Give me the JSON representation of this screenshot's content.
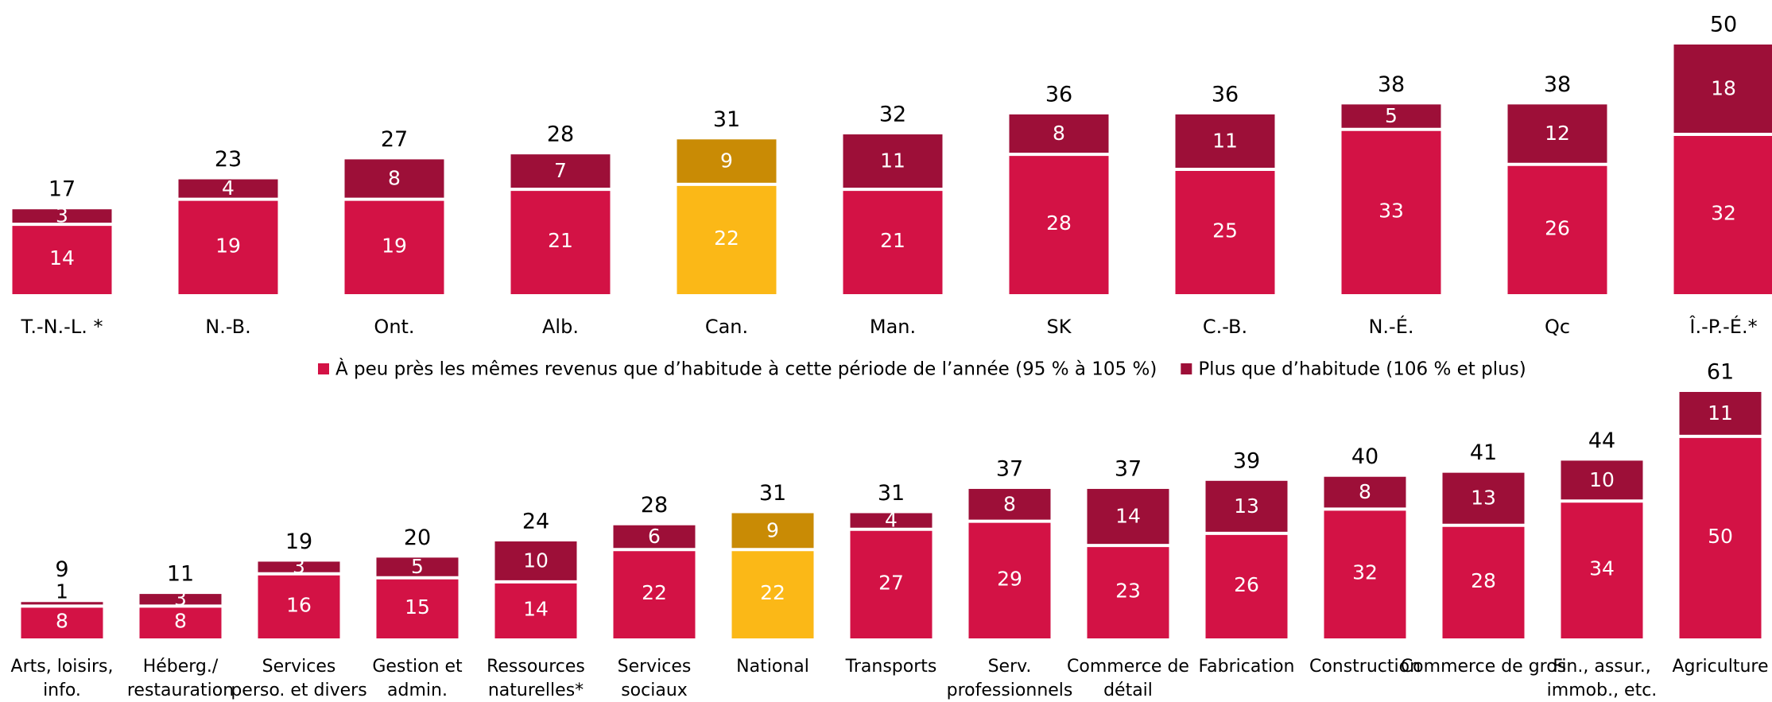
{
  "chart_data": [
    {
      "type": "stacked_bar",
      "categories": [
        "T.-N.-L. *",
        "N.-B.",
        "Ont.",
        "Alb.",
        "Can.",
        "Man.",
        "SK",
        "C.-B.",
        "N.-É.",
        "Qc",
        "Î.-P.-É.*"
      ],
      "series": [
        {
          "name": "À peu près les mêmes revenus que d’habitude à cette période de l’année (95 % à 105 %)",
          "color": "#d31245",
          "highlight_color": "#fbb817",
          "values": [
            14,
            19,
            19,
            21,
            22,
            21,
            28,
            25,
            33,
            26,
            32
          ]
        },
        {
          "name": "Plus que d’habitude (106 % et plus)",
          "color": "#9d0f38",
          "highlight_color": "#c98b05",
          "values": [
            3,
            4,
            8,
            7,
            9,
            11,
            8,
            11,
            5,
            12,
            18
          ]
        }
      ],
      "totals": [
        17,
        23,
        27,
        28,
        31,
        32,
        36,
        36,
        38,
        38,
        50
      ],
      "highlight_index": 4,
      "ylim": [
        0,
        50
      ]
    },
    {
      "type": "stacked_bar",
      "categories": [
        "Arts, loisirs,\ninfo.",
        "Héberg./\nrestauration",
        "Services\nperso. et divers",
        "Gestion et\nadmin.",
        "Ressources\nnaturelles*",
        "Services\nsociaux",
        "National",
        "Transports",
        "Serv.\nprofessionnels",
        "Commerce de\ndétail",
        "Fabrication",
        "Construction",
        "Commerce de gros",
        "Fin., assur.,\nimmob., etc.",
        "Agriculture"
      ],
      "series": [
        {
          "color": "#d31245",
          "highlight_color": "#fbb817",
          "values": [
            8,
            8,
            16,
            15,
            14,
            22,
            22,
            27,
            29,
            23,
            26,
            32,
            28,
            34,
            50
          ]
        },
        {
          "color": "#9d0f38",
          "highlight_color": "#c98b05",
          "values": [
            1,
            3,
            3,
            5,
            10,
            6,
            9,
            4,
            8,
            14,
            13,
            8,
            13,
            10,
            11
          ]
        }
      ],
      "totals": [
        9,
        11,
        19,
        20,
        24,
        28,
        31,
        31,
        37,
        37,
        39,
        40,
        41,
        44,
        61
      ],
      "highlight_index": 6,
      "ylim": [
        0,
        61
      ]
    }
  ]
}
